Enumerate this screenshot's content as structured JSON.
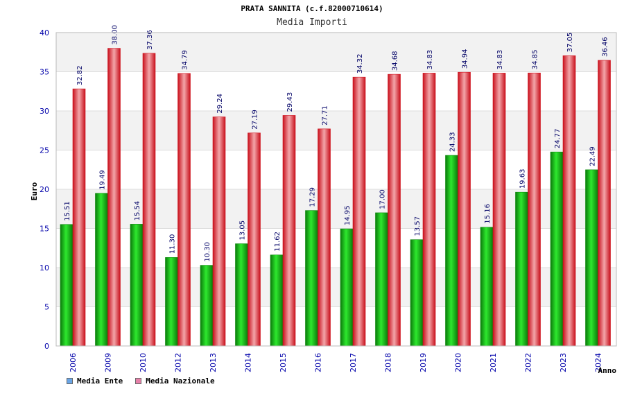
{
  "colors": {
    "ente_bar": "#1fc41f",
    "nazionale_bar": "#ee1f2a",
    "axis_text": "#0000aa",
    "label_text": "#000066",
    "band": "#f2f2f2",
    "legend_ente": "#6aa5e6",
    "legend_nazionale": "#e680a8"
  },
  "chart_data": {
    "type": "bar",
    "title": "PRATA SANNITA (c.f.82000710614)",
    "subtitle": "Media Importi",
    "xlabel": "Anno",
    "ylabel": "Euro",
    "ylim": [
      0,
      40
    ],
    "yticks": [
      0,
      5,
      10,
      15,
      20,
      25,
      30,
      35,
      40
    ],
    "grid": true,
    "legend_position": "bottom-left",
    "categories": [
      "2006",
      "2009",
      "2010",
      "2012",
      "2013",
      "2014",
      "2015",
      "2016",
      "2017",
      "2018",
      "2019",
      "2020",
      "2021",
      "2022",
      "2023",
      "2024"
    ],
    "series": [
      {
        "name": "Media Ente",
        "values": [
          15.51,
          19.49,
          15.54,
          11.3,
          10.3,
          13.05,
          11.62,
          17.29,
          14.95,
          17.0,
          13.57,
          24.33,
          15.16,
          19.63,
          24.77,
          22.49
        ],
        "labels": [
          "15.51",
          "19.49",
          "15.54",
          "11.30",
          "10.30",
          "13.05",
          "11.62",
          "17.29",
          "14.95",
          "17.00",
          "13.57",
          "24.33",
          "15.16",
          "19.63",
          "24.77",
          "22.49"
        ]
      },
      {
        "name": "Media Nazionale",
        "values": [
          32.82,
          38.0,
          37.36,
          34.79,
          29.24,
          27.19,
          29.43,
          27.71,
          34.32,
          34.68,
          34.83,
          34.94,
          34.83,
          34.85,
          37.05,
          36.46
        ],
        "labels": [
          "32.82",
          "38.00",
          "37.36",
          "34.79",
          "29.24",
          "27.19",
          "29.43",
          "27.71",
          "34.32",
          "34.68",
          "34.83",
          "34.94",
          "34.83",
          "34.85",
          "37.05",
          "36.46"
        ]
      }
    ]
  }
}
